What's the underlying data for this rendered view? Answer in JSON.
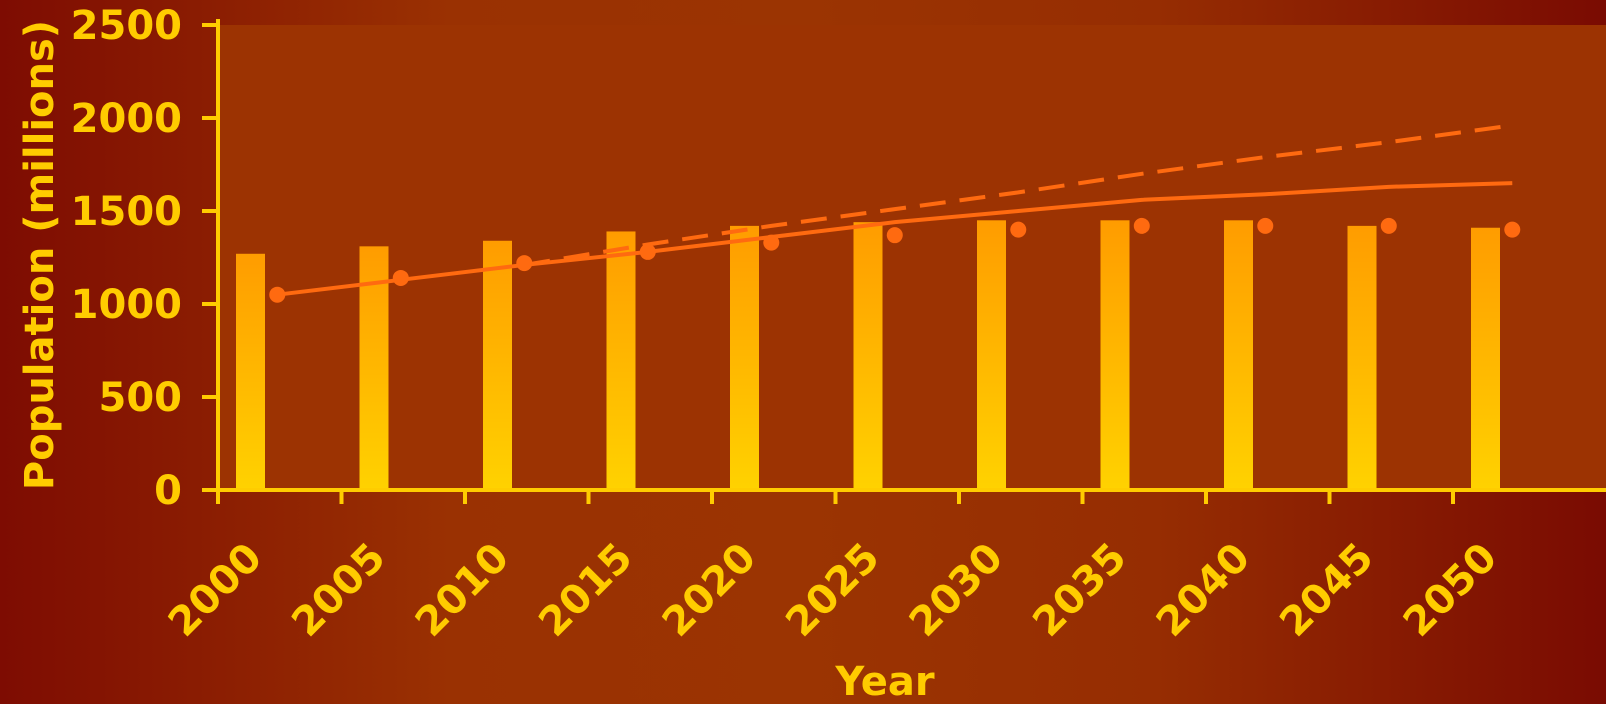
{
  "chart_data": {
    "type": "bar",
    "title": "",
    "xlabel": "Year",
    "ylabel": "Population (millions)",
    "x": [
      2000,
      2005,
      2010,
      2015,
      2020,
      2025,
      2030,
      2035,
      2040,
      2045,
      2050
    ],
    "x_tick_labels": [
      "2000",
      "2005",
      "2010",
      "2015",
      "2020",
      "2025",
      "2030",
      "2035",
      "2040",
      "2045",
      "2050"
    ],
    "ylim": [
      0,
      2500
    ],
    "y_ticks": [
      0,
      500,
      1000,
      1500,
      2000,
      2500
    ],
    "grid": false,
    "legend": "none",
    "series": [
      {
        "type": "bar",
        "x": [
          2000,
          2005,
          2010,
          2015,
          2020,
          2025,
          2030,
          2035,
          2040,
          2045,
          2050
        ],
        "values": [
          1270,
          1310,
          1340,
          1390,
          1420,
          1440,
          1450,
          1450,
          1450,
          1420,
          1410
        ],
        "color": "#ffc000"
      },
      {
        "type": "line",
        "style": "solid",
        "x": [
          2002.4,
          2007.4,
          2012.4,
          2017.4,
          2022.4,
          2027.4,
          2032.4,
          2037.4,
          2042.4,
          2047.4,
          2052.4
        ],
        "values": [
          1050,
          1130,
          1210,
          1280,
          1360,
          1440,
          1500,
          1560,
          1590,
          1630,
          1650
        ],
        "color": "#ff6a10"
      },
      {
        "type": "line",
        "style": "dashed",
        "x": [
          2012.4,
          2017.4,
          2022.4,
          2027.4,
          2032.4,
          2037.4,
          2042.4,
          2047.4,
          2052.4
        ],
        "values": [
          1210,
          1320,
          1420,
          1510,
          1600,
          1700,
          1790,
          1870,
          1960
        ],
        "color": "#ff6a10"
      },
      {
        "type": "scatter",
        "x": [
          2002.4,
          2007.4,
          2012.4,
          2017.4,
          2022.4,
          2027.4,
          2032.4,
          2037.4,
          2042.4,
          2047.4,
          2052.4
        ],
        "values": [
          1050,
          1140,
          1220,
          1280,
          1330,
          1370,
          1400,
          1420,
          1420,
          1420,
          1400
        ],
        "color": "#ff6a10"
      }
    ]
  },
  "colors": {
    "axis": "#ffcc00",
    "text": "#ffcc00",
    "plot_area": "#9c3302",
    "bar_top": "#ff9c00",
    "bar_bottom": "#ffd200",
    "line": "#ff6a10"
  }
}
